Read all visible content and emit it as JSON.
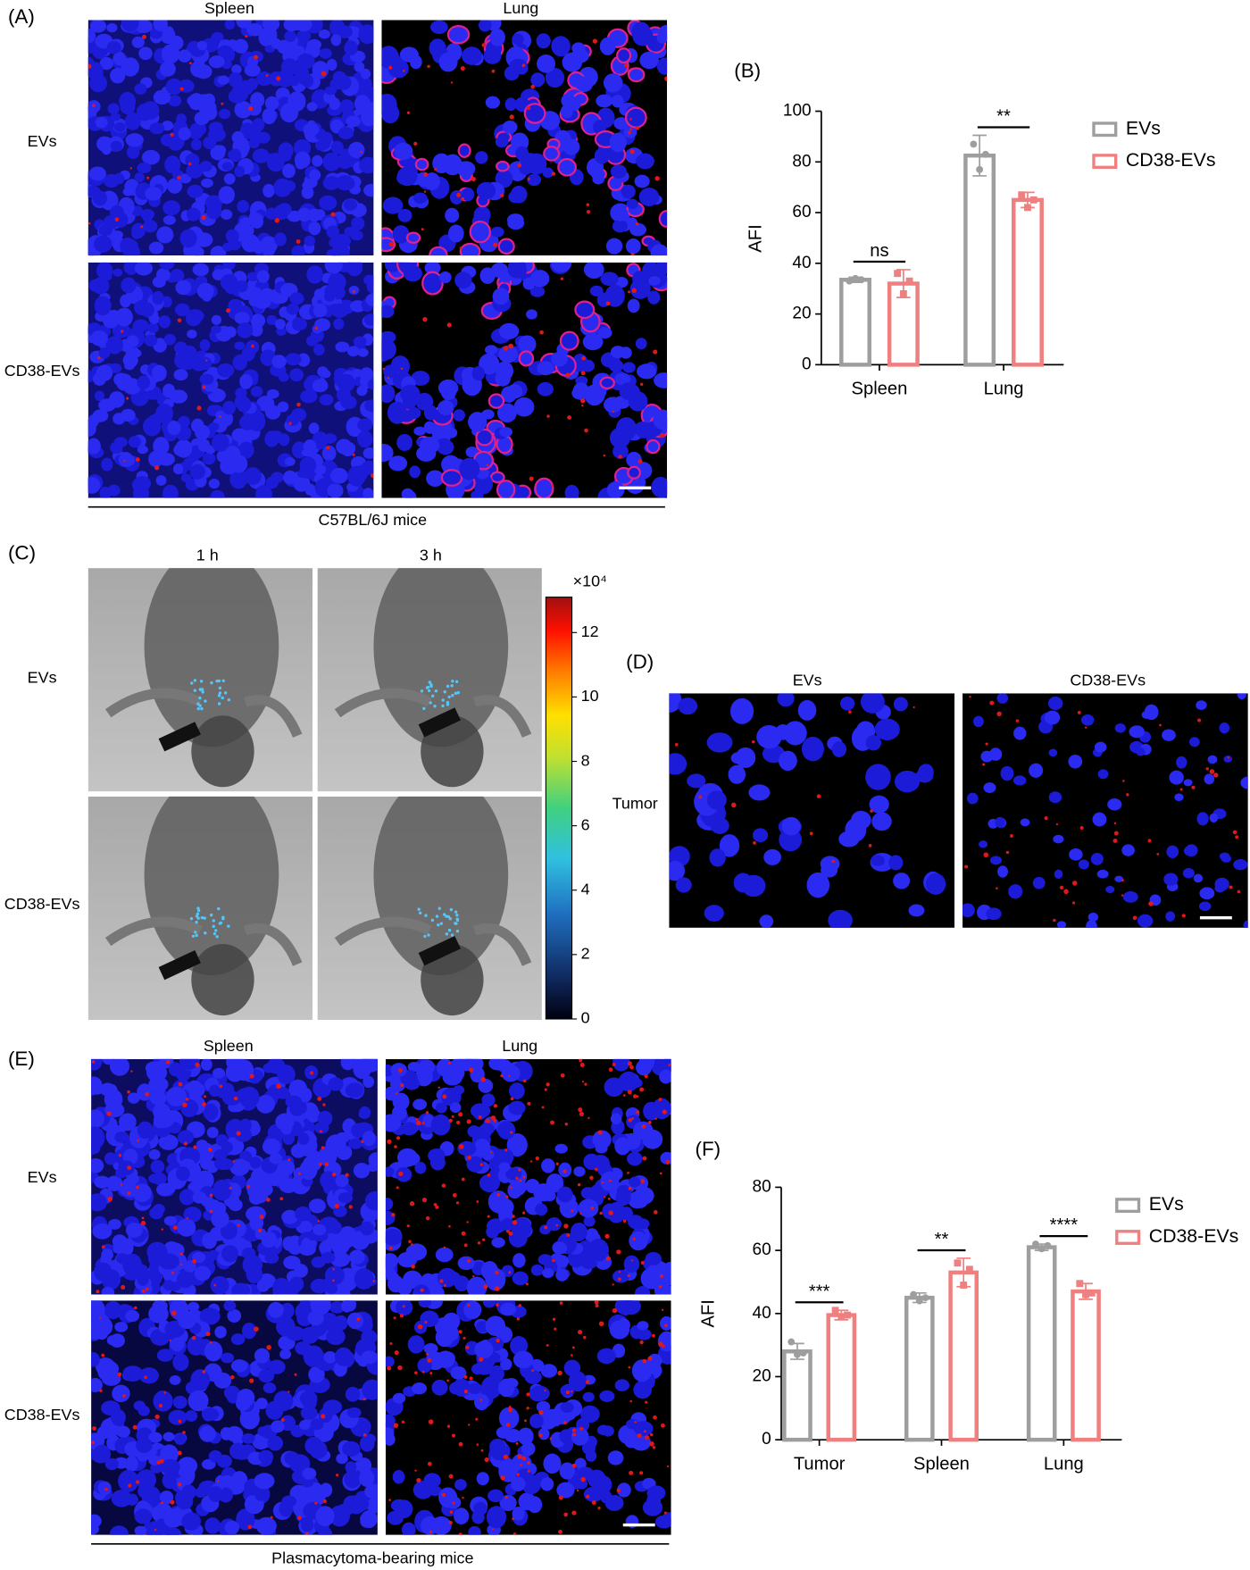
{
  "panels": {
    "A": {
      "label": "(A)",
      "columns": [
        "Spleen",
        "Lung"
      ],
      "rows": [
        "EVs",
        "CD38-EVs"
      ],
      "caption": "C57BL/6J mice"
    },
    "C": {
      "label": "(C)",
      "columns": [
        "1 h",
        "3 h"
      ],
      "rows": [
        "EVs",
        "CD38-EVs"
      ],
      "colorbar": {
        "label": "×10⁴",
        "lim": [
          0,
          13.1
        ],
        "ticks": [
          0,
          2,
          4,
          6,
          8,
          10,
          12
        ]
      }
    },
    "D": {
      "label": "(D)",
      "columns": [
        "EVs",
        "CD38-EVs"
      ],
      "rows": [
        "Tumor"
      ]
    },
    "E": {
      "label": "(E)",
      "columns": [
        "Spleen",
        "Lung"
      ],
      "rows": [
        "EVs",
        "CD38-EVs"
      ],
      "caption": "Plasmacytoma-bearing mice"
    }
  },
  "chart_data": [
    {
      "type": "bar",
      "label": "(B)",
      "ylabel": "AFI",
      "categories": [
        "Spleen",
        "Lung"
      ],
      "ylim": [
        0,
        100
      ],
      "yticks": [
        0,
        20,
        40,
        60,
        80,
        100
      ],
      "series": [
        {
          "name": "EVs",
          "color": "#9e9e9e",
          "values": [
            33.5,
            82.5
          ],
          "errors": [
            1,
            8
          ],
          "points": [
            [
              33,
              34,
              33.5
            ],
            [
              87,
              77,
              83
            ]
          ]
        },
        {
          "name": "CD38-EVs",
          "color": "#f07f7f",
          "values": [
            32,
            65
          ],
          "errors": [
            5.5,
            3
          ],
          "points": [
            [
              36,
              28,
              33
            ],
            [
              67,
              62,
              65
            ]
          ]
        }
      ],
      "significance": [
        "ns",
        "**"
      ]
    },
    {
      "type": "bar",
      "label": "(F)",
      "ylabel": "AFI",
      "categories": [
        "Tumor",
        "Spleen",
        "Lung"
      ],
      "ylim": [
        0,
        80
      ],
      "yticks": [
        0,
        20,
        40,
        60,
        80
      ],
      "series": [
        {
          "name": "EVs",
          "color": "#9e9e9e",
          "values": [
            28,
            45,
            61
          ],
          "errors": [
            2.5,
            1.5,
            1
          ],
          "points": [
            [
              31,
              27,
              27.5
            ],
            [
              46,
              44,
              45
            ],
            [
              62,
              60.5,
              61.5
            ]
          ]
        },
        {
          "name": "CD38-EVs",
          "color": "#f07f7f",
          "values": [
            39.5,
            53,
            47
          ],
          "errors": [
            1.5,
            4.5,
            2.5
          ],
          "points": [
            [
              41,
              39,
              39.5
            ],
            [
              56,
              49,
              54
            ],
            [
              49.5,
              46,
              46.5
            ]
          ]
        }
      ],
      "significance": [
        "***",
        "**",
        "****"
      ]
    }
  ]
}
